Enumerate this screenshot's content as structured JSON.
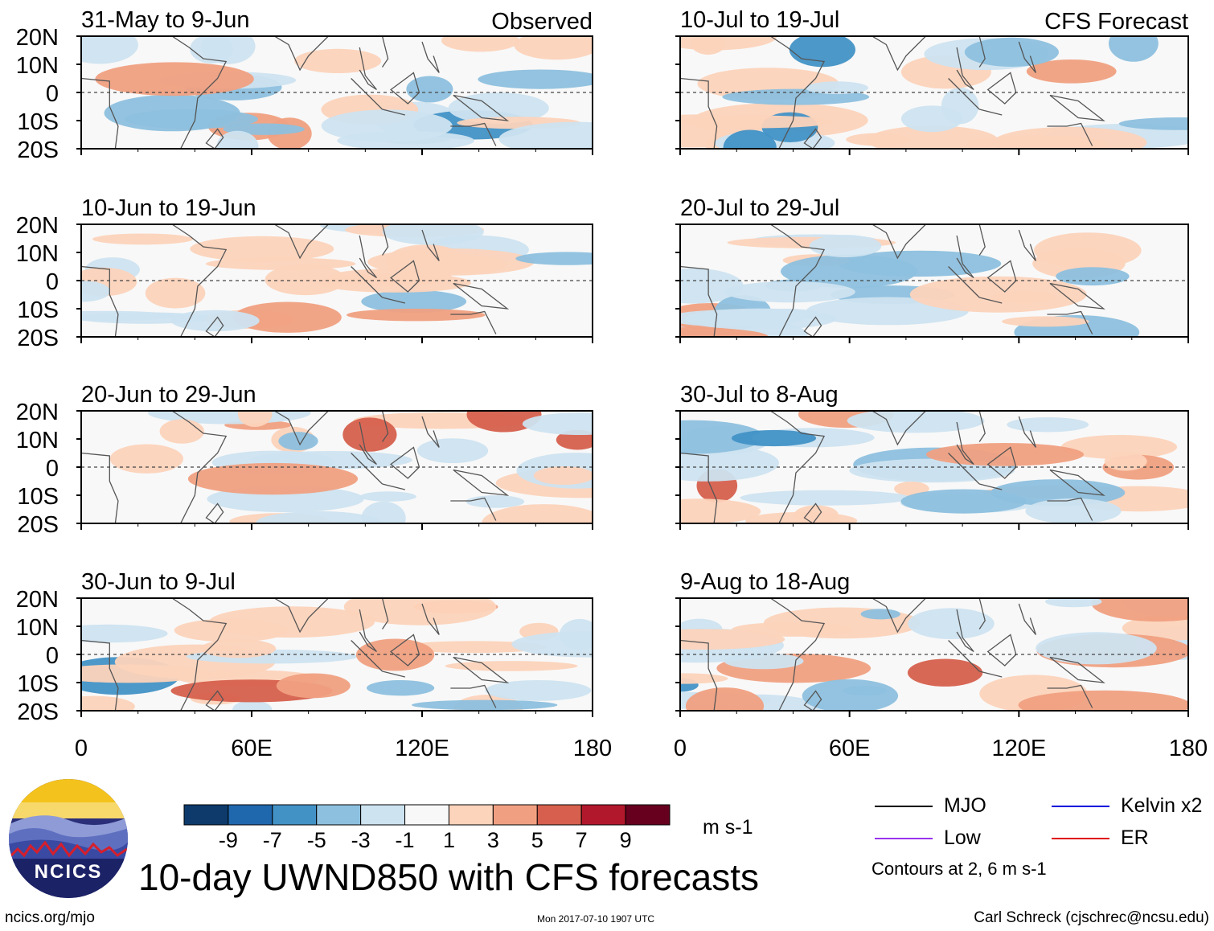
{
  "chart_data": {
    "type": "heatmap",
    "title": "10-day UWND850 with CFS forecasts",
    "variable": "UWND850",
    "units": "m s-1",
    "xlim": [
      0,
      180
    ],
    "ylim": [
      -20,
      20
    ],
    "x_ticks": [
      "0",
      "60E",
      "120E",
      "180"
    ],
    "y_ticks": [
      "20N",
      "10N",
      "0",
      "10S",
      "20S"
    ],
    "column_headers": {
      "left": "Observed",
      "right": "CFS Forecast"
    },
    "panels": [
      {
        "id": "p1",
        "title": "31-May to 9-Jun",
        "kind": "observed"
      },
      {
        "id": "p2",
        "title": "10-Jun to 19-Jun",
        "kind": "observed"
      },
      {
        "id": "p3",
        "title": "20-Jun to 29-Jun",
        "kind": "observed"
      },
      {
        "id": "p4",
        "title": "30-Jun to 9-Jul",
        "kind": "observed"
      },
      {
        "id": "p5",
        "title": "10-Jul to 19-Jul",
        "kind": "forecast"
      },
      {
        "id": "p6",
        "title": "20-Jul to 29-Jul",
        "kind": "forecast"
      },
      {
        "id": "p7",
        "title": "30-Jul to 8-Aug",
        "kind": "forecast"
      },
      {
        "id": "p8",
        "title": "9-Aug to 18-Aug",
        "kind": "forecast"
      }
    ],
    "colorbar": {
      "labels": [
        "-9",
        "-7",
        "-5",
        "-3",
        "-1",
        "1",
        "3",
        "5",
        "7",
        "9"
      ],
      "colors": [
        "#0d3a6b",
        "#1f68ae",
        "#4292c6",
        "#8dc0de",
        "#cde3f0",
        "#f8f8f8",
        "#fcd3bb",
        "#f0a081",
        "#d6604d",
        "#b2182b",
        "#67001f"
      ]
    },
    "legend": [
      {
        "label": "MJO",
        "color": "#000000"
      },
      {
        "label": "Kelvin x2",
        "color": "#0000dd"
      },
      {
        "label": "Low",
        "color": "#9933ee"
      },
      {
        "label": "ER",
        "color": "#dd0000"
      }
    ],
    "contours_note": "Contours at 2, 6 m s-1"
  },
  "footer": {
    "website": "ncics.org/mjo",
    "timestamp": "Mon 2017-07-10 1907 UTC",
    "author": "Carl Schreck (cjschrec@ncsu.edu)"
  },
  "logo_text": "NCICS"
}
